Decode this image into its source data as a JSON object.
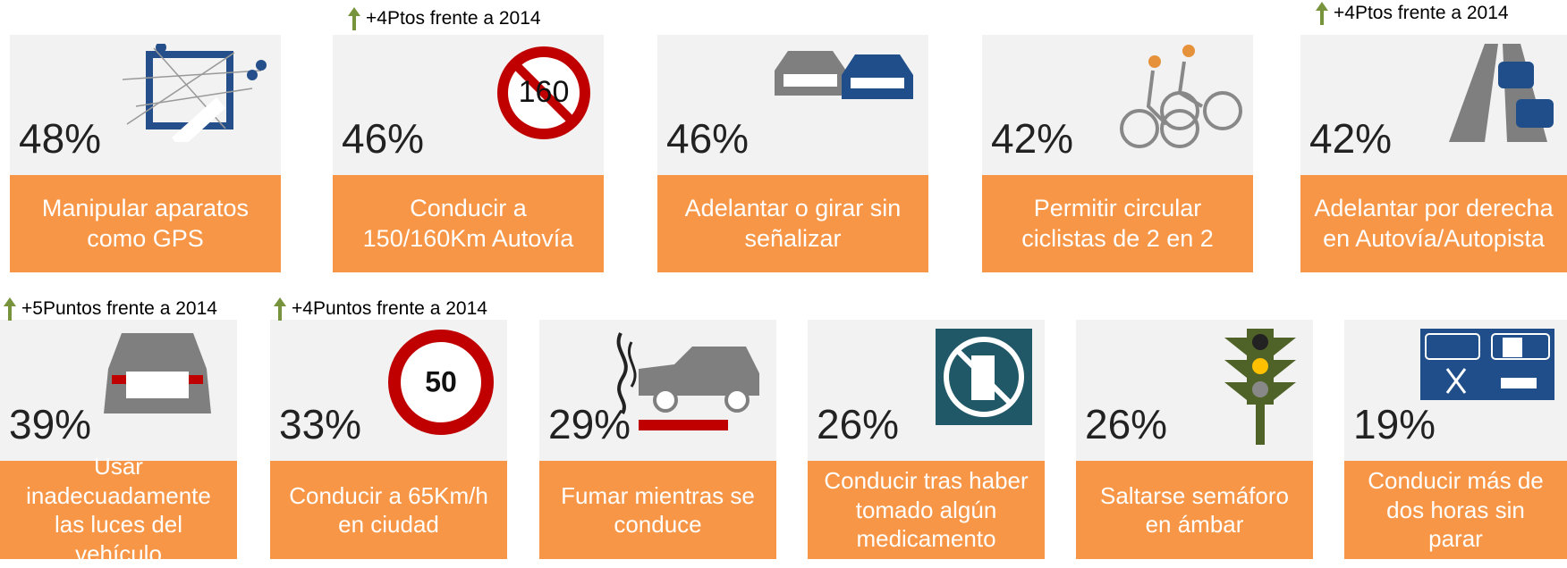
{
  "rows": [
    [
      {
        "value": "48%",
        "label": "Manipular aparatos como GPS"
      },
      {
        "value": "46%",
        "label": "Conducir a 150/160Km Autovía",
        "note": "+4Ptos frente a 2014",
        "icon_text": "160"
      },
      {
        "value": "46%",
        "label": "Adelantar o girar sin señalizar"
      },
      {
        "value": "42%",
        "label": "Permitir circular ciclistas de 2 en 2"
      },
      {
        "value": "42%",
        "label": "Adelantar por derecha en Autovía/Autopista",
        "note": "+4Ptos frente a 2014"
      }
    ],
    [
      {
        "value": "39%",
        "label": "Usar inadecuadamente las luces del vehículo",
        "note": "+5Puntos frente a 2014"
      },
      {
        "value": "33%",
        "label": "Conducir a 65Km/h en ciudad",
        "note": "+4Puntos frente a 2014",
        "icon_text": "50"
      },
      {
        "value": "29%",
        "label": "Fumar mientras se conduce"
      },
      {
        "value": "26%",
        "label": "Conducir tras haber tomado algún medicamento"
      },
      {
        "value": "26%",
        "label": "Saltarse semáforo en ámbar"
      },
      {
        "value": "19%",
        "label": "Conducir más de dos horas sin parar"
      }
    ]
  ]
}
